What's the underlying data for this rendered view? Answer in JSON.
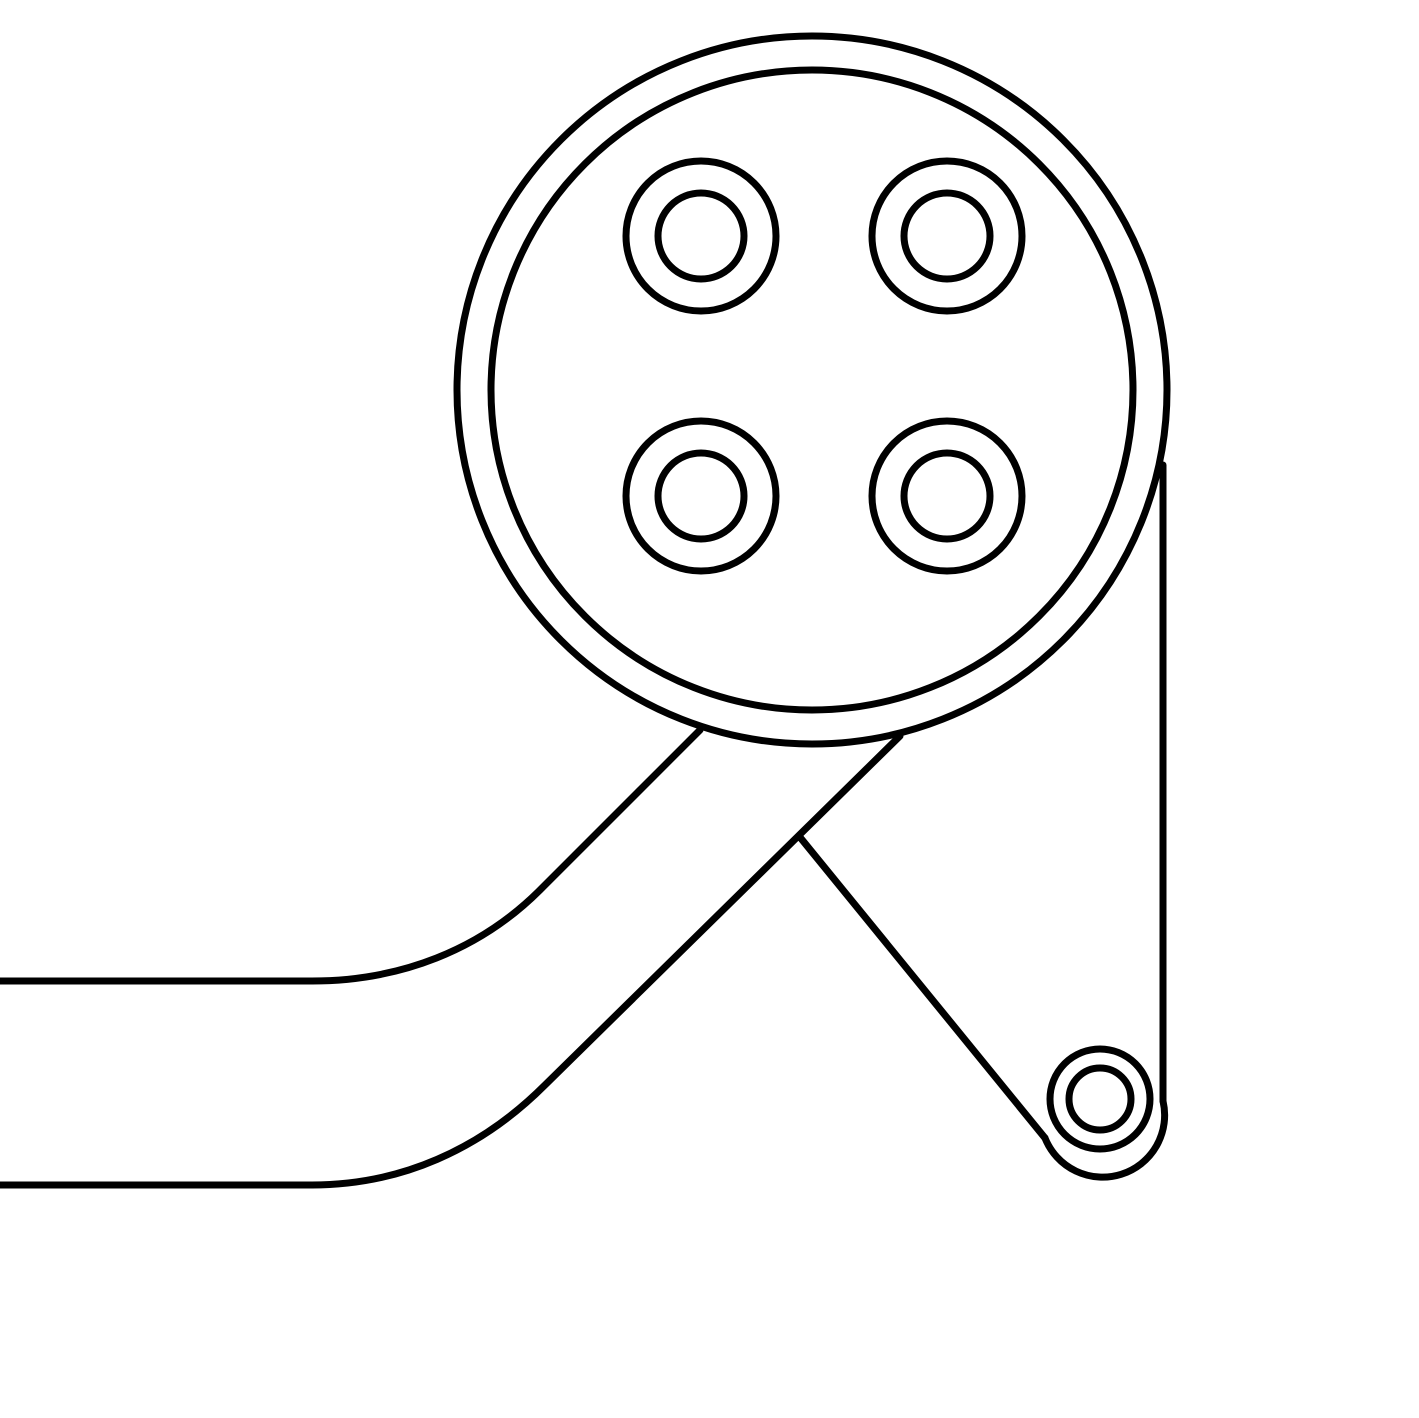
{
  "diagram": {
    "kind": "line-art",
    "background_color": "#ffffff",
    "stroke_color": "#000000",
    "components": [
      "large-pulley",
      "pulley-bolt-holes",
      "arm",
      "belt",
      "small-pulley"
    ]
  }
}
